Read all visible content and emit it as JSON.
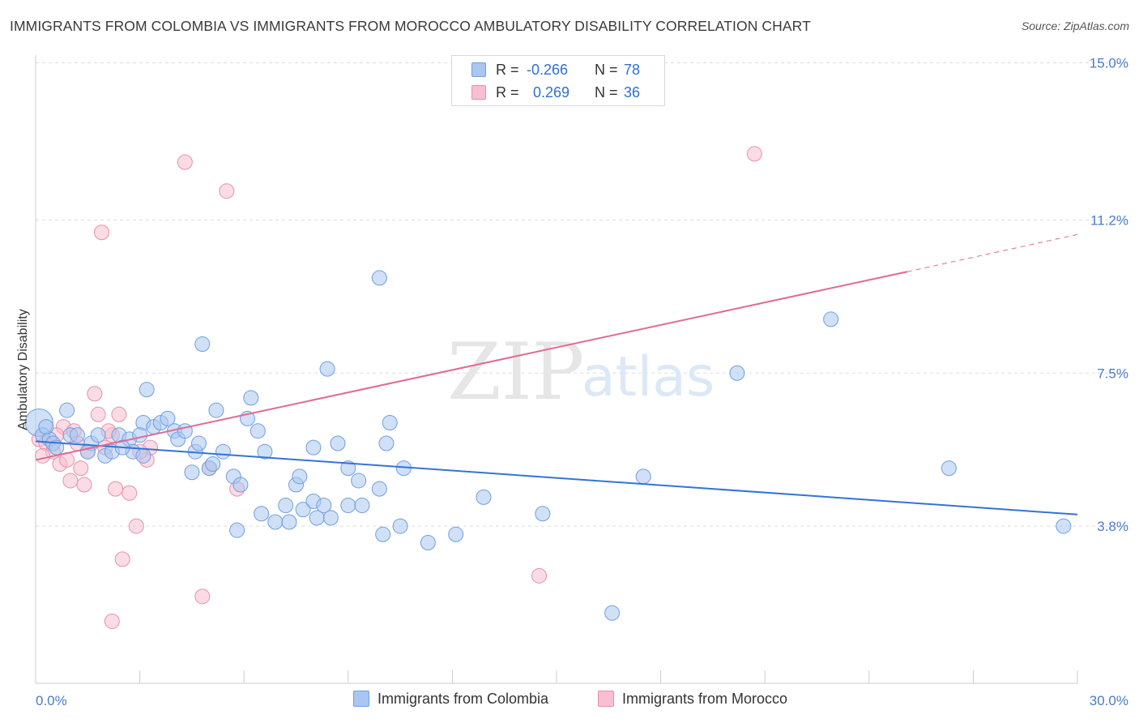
{
  "title": "IMMIGRANTS FROM COLOMBIA VS IMMIGRANTS FROM MOROCCO AMBULATORY DISABILITY CORRELATION CHART",
  "source": "Source: ZipAtlas.com",
  "watermark": {
    "zip": "ZIP",
    "atlas": "atlas"
  },
  "colors": {
    "colombia_fill": "#a9c6f0",
    "colombia_stroke": "#6f9fe0",
    "colombia_line": "#3374d4",
    "morocco_fill": "#f7bfd0",
    "morocco_stroke": "#e88fab",
    "morocco_line": "#e06a93",
    "grid": "#dddddd",
    "tick_text": "#4a7cc9"
  },
  "stats": {
    "colombia": {
      "r_label": "R =",
      "r_value": "-0.266",
      "n_label": "N =",
      "n_value": "78"
    },
    "morocco": {
      "r_label": "R =",
      "r_value": "0.269",
      "n_label": "N =",
      "n_value": "36"
    }
  },
  "legend": {
    "colombia": "Immigrants from Colombia",
    "morocco": "Immigrants from Morocco"
  },
  "chart_data": {
    "type": "scatter",
    "title": "IMMIGRANTS FROM COLOMBIA VS IMMIGRANTS FROM MOROCCO AMBULATORY DISABILITY CORRELATION CHART",
    "xlabel": "",
    "ylabel": "Ambulatory Disability",
    "xlim": [
      0,
      30
    ],
    "ylim": [
      0,
      15.5
    ],
    "x_tick_labels": [
      {
        "value": 0,
        "label": "0.0%"
      },
      {
        "value": 30,
        "label": "30.0%"
      }
    ],
    "y_tick_labels": [
      {
        "value": 3.8,
        "label": "3.8%"
      },
      {
        "value": 7.5,
        "label": "7.5%"
      },
      {
        "value": 11.2,
        "label": "11.2%"
      },
      {
        "value": 15.0,
        "label": "15.0%"
      }
    ],
    "y_gridlines": [
      3.8,
      7.5,
      11.2,
      15.0
    ],
    "grid": true,
    "legend_position": "bottom-center",
    "series": [
      {
        "name": "Immigrants from Colombia",
        "color": "#a9c6f0",
        "points": [
          [
            0.1,
            6.3
          ],
          [
            0.2,
            6.0
          ],
          [
            0.4,
            5.9
          ],
          [
            0.5,
            5.8
          ],
          [
            0.6,
            5.7
          ],
          [
            0.9,
            6.6
          ],
          [
            1.0,
            6.0
          ],
          [
            1.2,
            6.0
          ],
          [
            1.6,
            5.8
          ],
          [
            1.8,
            6.0
          ],
          [
            2.0,
            5.5
          ],
          [
            2.2,
            5.6
          ],
          [
            2.4,
            6.0
          ],
          [
            2.7,
            5.9
          ],
          [
            2.8,
            5.6
          ],
          [
            3.1,
            5.5
          ],
          [
            3.1,
            6.3
          ],
          [
            3.2,
            7.1
          ],
          [
            3.4,
            6.2
          ],
          [
            3.6,
            6.3
          ],
          [
            3.8,
            6.4
          ],
          [
            4.0,
            6.1
          ],
          [
            4.1,
            5.9
          ],
          [
            4.3,
            6.1
          ],
          [
            4.5,
            5.1
          ],
          [
            4.6,
            5.6
          ],
          [
            4.7,
            5.8
          ],
          [
            4.8,
            8.2
          ],
          [
            5.0,
            5.2
          ],
          [
            5.1,
            5.3
          ],
          [
            5.2,
            6.6
          ],
          [
            5.4,
            5.6
          ],
          [
            5.7,
            5.0
          ],
          [
            5.8,
            3.7
          ],
          [
            5.9,
            4.8
          ],
          [
            6.1,
            6.4
          ],
          [
            6.2,
            6.9
          ],
          [
            6.4,
            6.1
          ],
          [
            6.5,
            4.1
          ],
          [
            6.6,
            5.6
          ],
          [
            6.9,
            3.9
          ],
          [
            7.2,
            4.3
          ],
          [
            7.3,
            3.9
          ],
          [
            7.5,
            4.8
          ],
          [
            7.6,
            5.0
          ],
          [
            7.7,
            4.2
          ],
          [
            8.0,
            4.4
          ],
          [
            8.0,
            5.7
          ],
          [
            8.1,
            4.0
          ],
          [
            8.3,
            4.3
          ],
          [
            8.4,
            7.6
          ],
          [
            8.5,
            4.0
          ],
          [
            8.7,
            5.8
          ],
          [
            9.0,
            5.2
          ],
          [
            9.0,
            4.3
          ],
          [
            9.3,
            4.9
          ],
          [
            9.4,
            4.3
          ],
          [
            9.9,
            4.7
          ],
          [
            9.9,
            9.8
          ],
          [
            10.0,
            3.6
          ],
          [
            10.1,
            5.8
          ],
          [
            10.2,
            6.3
          ],
          [
            10.5,
            3.8
          ],
          [
            10.6,
            5.2
          ],
          [
            11.3,
            3.4
          ],
          [
            12.1,
            3.6
          ],
          [
            12.9,
            4.5
          ],
          [
            14.6,
            4.1
          ],
          [
            17.5,
            5.0
          ],
          [
            20.2,
            7.5
          ],
          [
            22.9,
            8.8
          ],
          [
            26.3,
            5.2
          ],
          [
            29.6,
            3.8
          ],
          [
            16.6,
            1.7
          ],
          [
            0.3,
            6.2
          ],
          [
            1.5,
            5.6
          ],
          [
            2.5,
            5.7
          ],
          [
            3.0,
            6.0
          ]
        ],
        "trendline": {
          "x": [
            0,
            30
          ],
          "y": [
            5.85,
            4.08
          ]
        }
      },
      {
        "name": "Immigrants from Morocco",
        "color": "#f7bfd0",
        "points": [
          [
            0.1,
            5.9
          ],
          [
            0.3,
            5.8
          ],
          [
            0.5,
            5.6
          ],
          [
            0.7,
            5.3
          ],
          [
            0.8,
            6.2
          ],
          [
            0.9,
            5.4
          ],
          [
            1.0,
            4.9
          ],
          [
            1.1,
            6.1
          ],
          [
            1.3,
            5.2
          ],
          [
            1.4,
            4.8
          ],
          [
            1.5,
            5.6
          ],
          [
            1.7,
            7.0
          ],
          [
            1.8,
            6.5
          ],
          [
            1.9,
            10.9
          ],
          [
            2.0,
            5.7
          ],
          [
            2.2,
            6.0
          ],
          [
            2.2,
            1.5
          ],
          [
            2.3,
            4.7
          ],
          [
            2.4,
            6.5
          ],
          [
            2.5,
            3.0
          ],
          [
            2.7,
            4.6
          ],
          [
            2.9,
            3.8
          ],
          [
            3.2,
            5.4
          ],
          [
            3.3,
            5.7
          ],
          [
            4.3,
            12.6
          ],
          [
            4.8,
            2.1
          ],
          [
            5.0,
            5.2
          ],
          [
            5.5,
            11.9
          ],
          [
            5.8,
            4.7
          ],
          [
            14.5,
            2.6
          ],
          [
            20.7,
            12.8
          ],
          [
            0.2,
            5.5
          ],
          [
            0.6,
            6.0
          ],
          [
            1.2,
            5.8
          ],
          [
            2.1,
            6.1
          ],
          [
            3.0,
            5.6
          ]
        ],
        "trendline": {
          "x": [
            0,
            25.1
          ],
          "y": [
            5.4,
            9.95
          ]
        },
        "trendline_dashed_extension": {
          "x": [
            25.1,
            30
          ],
          "y": [
            9.95,
            10.85
          ]
        }
      }
    ]
  }
}
